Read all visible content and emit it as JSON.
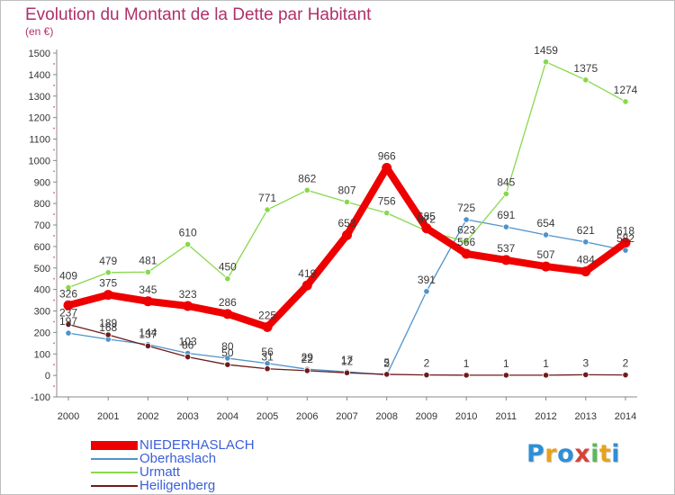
{
  "chart_data": {
    "type": "line",
    "title": "Evolution du Montant de la Dette par Habitant",
    "subtitle": "(en €)",
    "xlabel": "",
    "ylabel": "",
    "ylim": [
      -100,
      1500
    ],
    "yticks": [
      -100,
      0,
      100,
      200,
      300,
      400,
      500,
      600,
      700,
      800,
      900,
      1000,
      1100,
      1200,
      1300,
      1400,
      1500
    ],
    "categories": [
      "2000",
      "2001",
      "2002",
      "2003",
      "2004",
      "2005",
      "2006",
      "2007",
      "2008",
      "2009",
      "2010",
      "2011",
      "2012",
      "2013",
      "2014"
    ],
    "grid": false,
    "legend_position": "bottom-left",
    "series": [
      {
        "name": "NIEDERHASLACH",
        "color": "#ee0000",
        "width": 8,
        "values": [
          326,
          375,
          345,
          323,
          286,
          225,
          419,
          653,
          966,
          685,
          566,
          537,
          507,
          484,
          618
        ]
      },
      {
        "name": "Oberhaslach",
        "color": "#4f93cc",
        "width": 1.3,
        "values": [
          197,
          168,
          144,
          103,
          80,
          56,
          29,
          17,
          2,
          391,
          725,
          691,
          654,
          621,
          582
        ]
      },
      {
        "name": "Urmatt",
        "color": "#88d84c",
        "width": 1.3,
        "values": [
          409,
          479,
          481,
          610,
          450,
          771,
          862,
          807,
          756,
          672,
          623,
          845,
          1459,
          1375,
          1274
        ]
      },
      {
        "name": "Heiligenberg",
        "color": "#6e1b1b",
        "width": 1.3,
        "values": [
          237,
          189,
          137,
          86,
          50,
          31,
          22,
          12,
          5,
          2,
          1,
          1,
          1,
          3,
          2
        ]
      }
    ]
  },
  "legend": {
    "items": [
      "NIEDERHASLACH",
      "Oberhaslach",
      "Urmatt",
      "Heiligenberg"
    ]
  },
  "logo": {
    "letters": [
      "P",
      "r",
      "o",
      "x",
      "i",
      "t",
      "i"
    ],
    "colors": [
      "#2e8fd6",
      "#e8a21a",
      "#2e8fd6",
      "#d8423a",
      "#5cb85c",
      "#e8a21a",
      "#2e8fd6"
    ]
  }
}
